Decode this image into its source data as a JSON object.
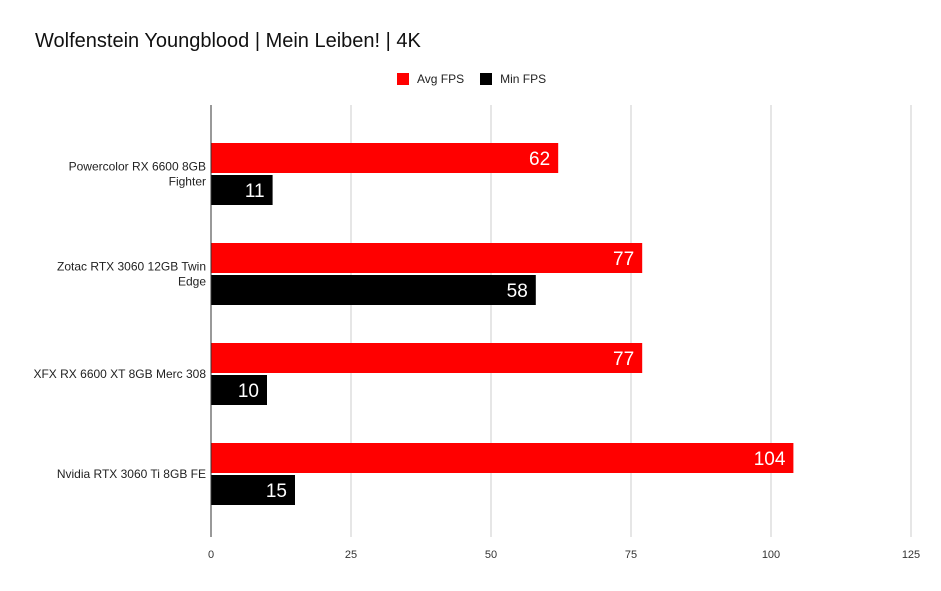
{
  "chart_data": {
    "type": "bar",
    "orientation": "horizontal",
    "title": "Wolfenstein Youngblood | Mein Leiben! | 4K",
    "categories": [
      [
        "Powercolor RX 6600 8GB",
        "Fighter"
      ],
      [
        "Zotac RTX 3060 12GB Twin",
        "Edge"
      ],
      [
        "XFX RX 6600 XT 8GB Merc 308"
      ],
      [
        "Nvidia RTX 3060 Ti 8GB FE"
      ]
    ],
    "series": [
      {
        "name": "Avg FPS",
        "color": "#ff0000",
        "values": [
          62,
          77,
          77,
          104
        ]
      },
      {
        "name": "Min FPS",
        "color": "#000000",
        "values": [
          11,
          58,
          10,
          15
        ]
      }
    ],
    "xlim": [
      0,
      125
    ],
    "xticks": [
      0,
      25,
      50,
      75,
      100,
      125
    ],
    "grid": true,
    "legend": "top-center",
    "data_labels": true
  }
}
